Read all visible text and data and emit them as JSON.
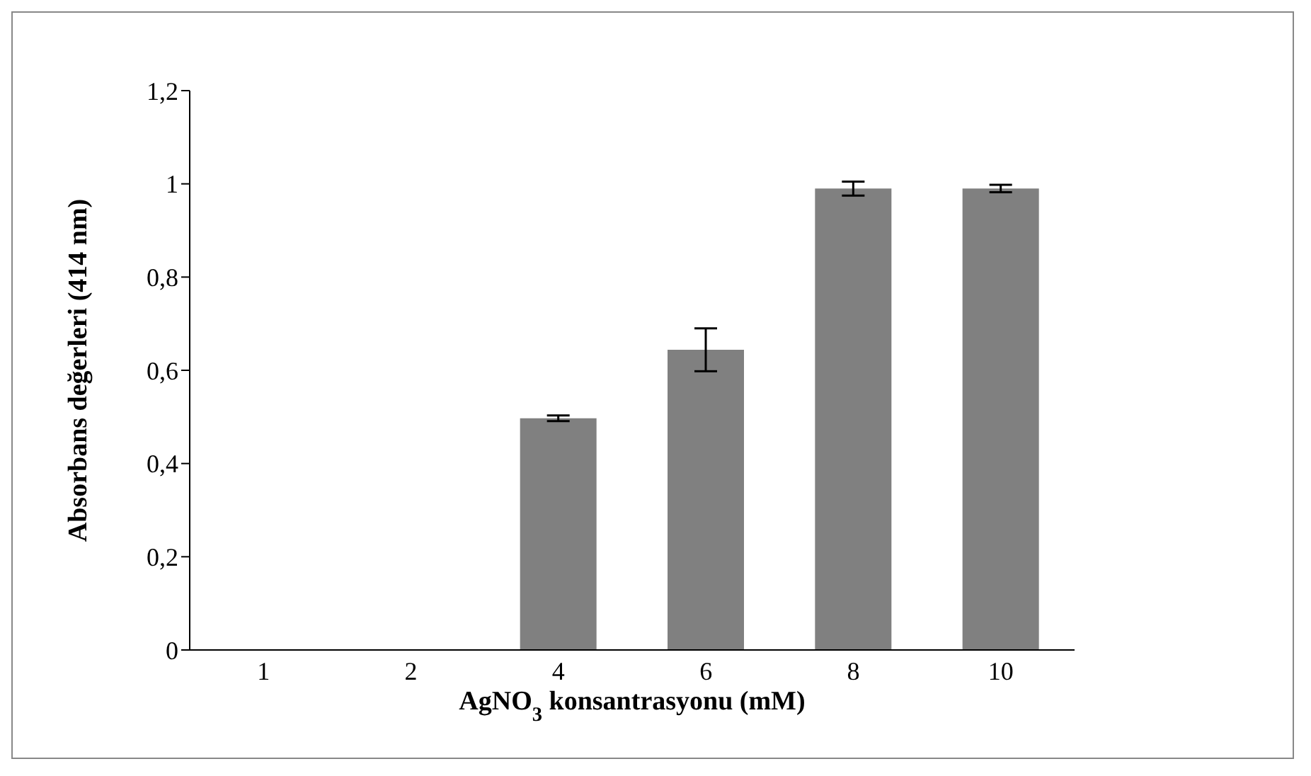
{
  "chart_data": {
    "type": "bar",
    "xlabel": "AgNO$_{3}$ konsantrasyonu (mM)",
    "ylabel": "Absorbans değerleri (414 nm)",
    "categories": [
      "1",
      "2",
      "4",
      "6",
      "8",
      "10"
    ],
    "values": [
      0,
      0,
      0.497,
      0.644,
      0.99,
      0.99
    ],
    "errors": [
      null,
      null,
      0.006,
      0.046,
      0.015,
      0.008
    ],
    "color": "#808080",
    "ylim": [
      0,
      1.2
    ],
    "yticks": [
      0,
      {
        "value": 0.2,
        "label": "0,2"
      },
      {
        "value": 0.4,
        "label": "0,4"
      },
      {
        "value": 0.6,
        "label": "0,6"
      },
      {
        "value": 0.8,
        "label": "0,8"
      },
      1,
      {
        "value": 1.2,
        "label": "1,2"
      }
    ],
    "grid": false,
    "legend": false
  }
}
